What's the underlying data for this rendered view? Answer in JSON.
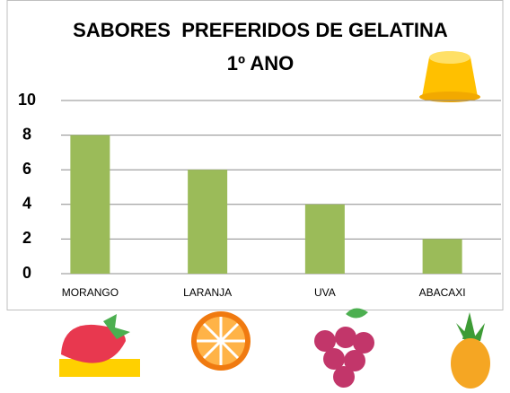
{
  "chart_data": {
    "type": "bar",
    "title": "SABORES  PREFERIDOS DE GELATINA",
    "subtitle": "1º ANO",
    "categories": [
      "MORANGO",
      "LARANJA",
      "UVA",
      "ABACAXI"
    ],
    "values": [
      8,
      6,
      4,
      2
    ],
    "color": "#9bbb59",
    "ylim": [
      0,
      10
    ],
    "yticks": [
      0,
      2,
      4,
      6,
      8,
      10
    ],
    "grid": true
  }
}
